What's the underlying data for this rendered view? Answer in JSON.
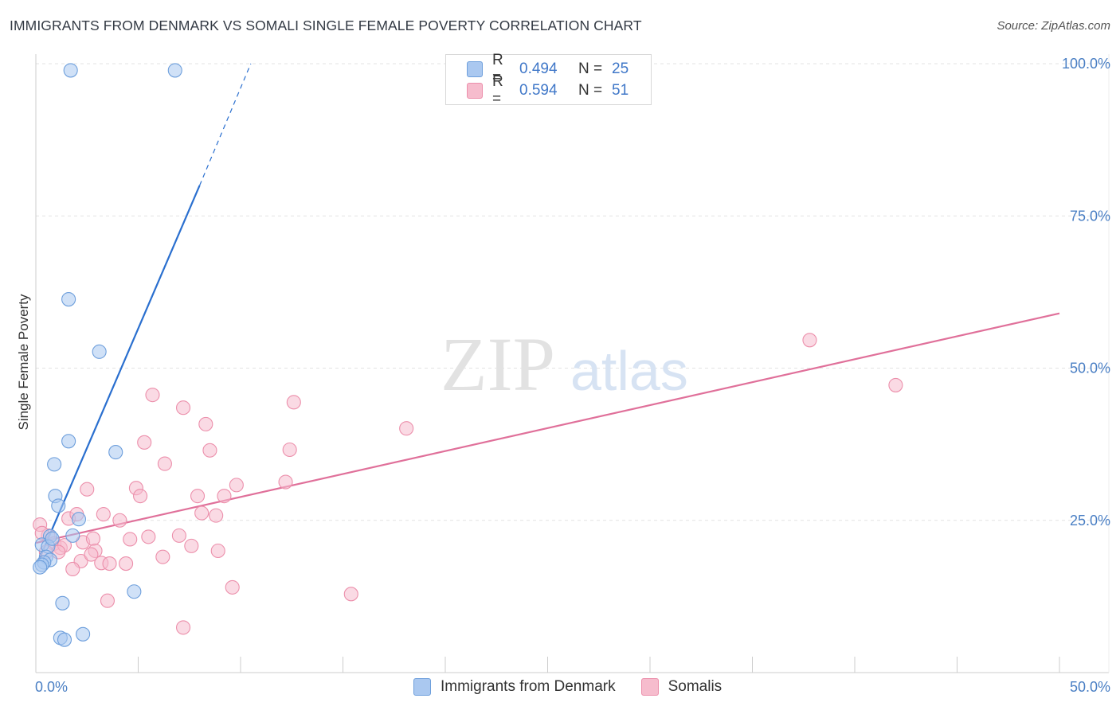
{
  "title": "IMMIGRANTS FROM DENMARK VS SOMALI SINGLE FEMALE POVERTY CORRELATION CHART",
  "source": "Source: ZipAtlas.com",
  "watermark": {
    "zip": "ZIP",
    "atlas": "atlas"
  },
  "legend": {
    "rows": [
      {
        "r_label": "R =",
        "r_value": "0.494",
        "n_label": "N =",
        "n_value": "25"
      },
      {
        "r_label": "R =",
        "r_value": "0.594",
        "n_label": "N =",
        "n_value": "51"
      }
    ]
  },
  "colors": {
    "denmark_fill": "#aac8f0",
    "denmark_stroke": "#6e9fdc",
    "denmark_line": "#2a6fcf",
    "somali_fill": "#f6bccd",
    "somali_stroke": "#ec8fab",
    "somali_line": "#e0709a",
    "grid": "#e3e3e3",
    "axis_text": "#4a7fc4"
  },
  "chart_data": {
    "type": "scatter",
    "title": "IMMIGRANTS FROM DENMARK VS SOMALI SINGLE FEMALE POVERTY CORRELATION CHART",
    "xlabel": "",
    "ylabel": "Single Female Poverty",
    "xlim": [
      0,
      50
    ],
    "ylim": [
      0,
      100
    ],
    "x_tick_labels": [
      "0.0%",
      "50.0%"
    ],
    "y_tick_labels": [
      "100.0%",
      "75.0%",
      "50.0%",
      "25.0%"
    ],
    "y_ticks": [
      100,
      75,
      50,
      25
    ],
    "grid": true,
    "series": [
      {
        "name": "Immigrants from Denmark",
        "r": 0.494,
        "n": 25,
        "points": [
          [
            1.7,
            98.9
          ],
          [
            6.8,
            98.9
          ],
          [
            1.6,
            61.3
          ],
          [
            3.1,
            52.7
          ],
          [
            1.6,
            38.0
          ],
          [
            3.9,
            36.2
          ],
          [
            0.9,
            34.2
          ],
          [
            0.95,
            29.0
          ],
          [
            1.1,
            27.4
          ],
          [
            2.1,
            25.2
          ],
          [
            1.8,
            22.5
          ],
          [
            0.7,
            22.4
          ],
          [
            0.3,
            21.0
          ],
          [
            0.6,
            20.7
          ],
          [
            0.5,
            19.0
          ],
          [
            0.7,
            18.5
          ],
          [
            0.4,
            18.1
          ],
          [
            0.3,
            17.7
          ],
          [
            0.2,
            17.3
          ],
          [
            4.8,
            13.3
          ],
          [
            1.3,
            11.4
          ],
          [
            1.2,
            5.7
          ],
          [
            1.4,
            5.4
          ],
          [
            2.3,
            6.3
          ],
          [
            0.8,
            22.0
          ]
        ],
        "trend": {
          "x1": 0.1,
          "y1": 18.1,
          "x2": 8.0,
          "y2": 80.0,
          "dash_x2": 10.5,
          "dash_y2": 100.0
        }
      },
      {
        "name": "Somalis",
        "r": 0.594,
        "n": 51,
        "points": [
          [
            0.2,
            24.3
          ],
          [
            0.6,
            22.5
          ],
          [
            0.9,
            21.2
          ],
          [
            1.2,
            20.5
          ],
          [
            1.4,
            20.9
          ],
          [
            0.3,
            22.9
          ],
          [
            1.1,
            19.8
          ],
          [
            1.6,
            25.3
          ],
          [
            2.0,
            26.0
          ],
          [
            2.5,
            30.1
          ],
          [
            2.2,
            18.3
          ],
          [
            1.8,
            17.0
          ],
          [
            2.3,
            21.4
          ],
          [
            2.8,
            22.0
          ],
          [
            2.9,
            20.0
          ],
          [
            3.3,
            26.0
          ],
          [
            3.2,
            18.0
          ],
          [
            2.7,
            19.4
          ],
          [
            3.6,
            17.9
          ],
          [
            3.5,
            11.8
          ],
          [
            4.1,
            25.0
          ],
          [
            4.6,
            21.9
          ],
          [
            4.4,
            17.9
          ],
          [
            4.9,
            30.3
          ],
          [
            5.1,
            29.0
          ],
          [
            5.3,
            37.8
          ],
          [
            5.5,
            22.3
          ],
          [
            5.7,
            45.6
          ],
          [
            6.3,
            34.3
          ],
          [
            6.2,
            19.0
          ],
          [
            7.2,
            43.5
          ],
          [
            7.0,
            22.5
          ],
          [
            7.6,
            20.8
          ],
          [
            7.9,
            29.0
          ],
          [
            8.1,
            26.2
          ],
          [
            8.3,
            40.8
          ],
          [
            8.5,
            36.5
          ],
          [
            8.8,
            25.8
          ],
          [
            9.2,
            29.0
          ],
          [
            9.6,
            14.0
          ],
          [
            9.8,
            30.8
          ],
          [
            8.9,
            20.0
          ],
          [
            12.2,
            31.3
          ],
          [
            12.4,
            36.6
          ],
          [
            12.6,
            44.4
          ],
          [
            15.4,
            12.9
          ],
          [
            18.1,
            40.1
          ],
          [
            37.8,
            54.6
          ],
          [
            42.0,
            47.2
          ],
          [
            7.2,
            7.4
          ],
          [
            0.5,
            19.8
          ]
        ],
        "trend": {
          "x1": 0,
          "y1": 21.3,
          "x2": 50,
          "y2": 59.0
        }
      }
    ]
  },
  "bottom_legend": [
    "Immigrants from Denmark",
    "Somalis"
  ]
}
